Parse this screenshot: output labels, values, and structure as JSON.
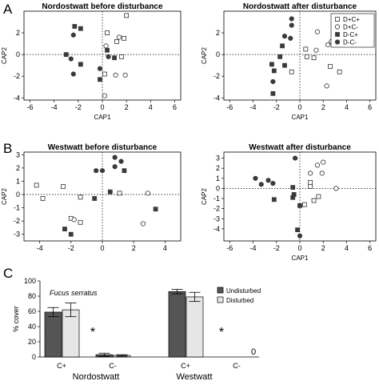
{
  "panel_labels": [
    "A",
    "B",
    "C"
  ],
  "colors": {
    "filled": "#3a3a3a",
    "open": "#ffffff",
    "bar_dark": "#555555",
    "bar_light": "#e6e6e6",
    "axis": "#000000"
  },
  "chart_data": [
    {
      "type": "scatter",
      "title": "Nordostwatt before disturbance",
      "xlabel": "CAP1",
      "ylabel": "CAP2",
      "xlim": [
        -6.5,
        6.5
      ],
      "ylim": [
        -4.2,
        4
      ],
      "xticks": [
        -6,
        -4,
        -2,
        0,
        2,
        4,
        6
      ],
      "yticks": [
        -4,
        -2,
        0,
        2
      ],
      "reference_lines": "dotted at x=0 and y=0",
      "series": [
        {
          "marker": "open-square",
          "points": [
            [
              2.0,
              3.6
            ],
            [
              0.4,
              2.0
            ],
            [
              1.8,
              1.5
            ],
            [
              1.2,
              1.2
            ],
            [
              1.6,
              -0.2
            ],
            [
              0.2,
              -1.8
            ]
          ]
        },
        {
          "marker": "open-circle",
          "points": [
            [
              1.4,
              1.6
            ],
            [
              0.3,
              0.8
            ],
            [
              1.1,
              -1.9
            ],
            [
              1.9,
              -1.9
            ],
            [
              0.2,
              -3.8
            ]
          ]
        },
        {
          "marker": "filled-square",
          "points": [
            [
              -2.3,
              2.6
            ],
            [
              -1.8,
              2.4
            ],
            [
              -3.0,
              0.0
            ],
            [
              -1.8,
              -0.9
            ],
            [
              0.4,
              0.4
            ],
            [
              1.0,
              -0.3
            ],
            [
              -0.2,
              -2.3
            ]
          ]
        },
        {
          "marker": "filled-circle",
          "points": [
            [
              -2.4,
              1.8
            ],
            [
              -2.6,
              -0.4
            ],
            [
              -2.4,
              -1.8
            ],
            [
              0.5,
              -0.2
            ],
            [
              -0.2,
              -1.3
            ]
          ]
        }
      ]
    },
    {
      "type": "scatter",
      "title": "Nordostwatt after disturbance",
      "xlabel": "CAP1",
      "ylabel": "CAP2",
      "xlim": [
        -6.5,
        6.5
      ],
      "ylim": [
        -4.2,
        4
      ],
      "xticks": [
        -6,
        -4,
        -2,
        0,
        2,
        4,
        6
      ],
      "yticks": [
        -4,
        -2,
        0,
        2
      ],
      "reference_lines": "dotted at x=0 and y=0",
      "legend": {
        "placement": "top-right",
        "entries": [
          {
            "label": "D+C+",
            "marker": "open-square"
          },
          {
            "label": "D+C-",
            "marker": "open-circle"
          },
          {
            "label": "D-C+",
            "marker": "filled-square"
          },
          {
            "label": "D-C-",
            "marker": "filled-circle"
          }
        ]
      },
      "series": [
        {
          "name": "D+C+",
          "marker": "open-square",
          "points": [
            [
              0.5,
              0.5
            ],
            [
              0.6,
              -0.2
            ],
            [
              1.2,
              -0.3
            ],
            [
              -0.7,
              -1.6
            ],
            [
              3.4,
              -1.6
            ],
            [
              2.6,
              -1.1
            ]
          ]
        },
        {
          "name": "D+C-",
          "marker": "open-circle",
          "points": [
            [
              1.5,
              2.1
            ],
            [
              2.4,
              0.9
            ],
            [
              2.7,
              1.2
            ],
            [
              1.4,
              0.4
            ],
            [
              2.3,
              -2.9
            ]
          ]
        },
        {
          "name": "D-C+",
          "marker": "filled-square",
          "points": [
            [
              -1.5,
              0.8
            ],
            [
              -1.7,
              -0.2
            ],
            [
              -2.4,
              -0.9
            ],
            [
              -2.2,
              -1.5
            ],
            [
              -1.3,
              -1.0
            ],
            [
              -2.3,
              -3.6
            ]
          ]
        },
        {
          "name": "D-C-",
          "marker": "filled-circle",
          "points": [
            [
              -0.7,
              3.3
            ],
            [
              -0.7,
              2.7
            ],
            [
              -1.3,
              1.7
            ],
            [
              -0.8,
              1.5
            ],
            [
              -2.3,
              -2.5
            ]
          ]
        }
      ]
    },
    {
      "type": "scatter",
      "title": "Westwatt before disturbance",
      "xlabel": "",
      "ylabel": "CAP2",
      "xlim": [
        -5,
        5
      ],
      "ylim": [
        -3.5,
        3.2
      ],
      "xticks": [
        -4,
        -2,
        0,
        2,
        4
      ],
      "yticks": [
        -3,
        -2,
        -1,
        0,
        1,
        2,
        3
      ],
      "reference_lines": "dotted at x=0 and y=0",
      "series": [
        {
          "marker": "open-square",
          "points": [
            [
              -4.2,
              0.7
            ],
            [
              -2.5,
              0.6
            ],
            [
              -3.8,
              -0.3
            ],
            [
              -1.4,
              -0.2
            ],
            [
              1.1,
              0.1
            ],
            [
              -2.0,
              -1.8
            ],
            [
              -1.4,
              -2.1
            ]
          ]
        },
        {
          "marker": "open-circle",
          "points": [
            [
              -1.8,
              -1.9
            ],
            [
              2.9,
              0.1
            ],
            [
              2.6,
              -2.2
            ]
          ]
        },
        {
          "marker": "filled-square",
          "points": [
            [
              -2.4,
              -2.6
            ],
            [
              -2.0,
              -3.0
            ],
            [
              -0.5,
              -0.3
            ],
            [
              1.4,
              1.8
            ],
            [
              3.4,
              -1.1
            ],
            [
              0.5,
              0.2
            ]
          ]
        },
        {
          "marker": "filled-circle",
          "points": [
            [
              -0.4,
              1.8
            ],
            [
              0.0,
              1.8
            ],
            [
              0.8,
              2.8
            ],
            [
              1.2,
              2.5
            ],
            [
              0.8,
              2.1
            ]
          ]
        }
      ]
    },
    {
      "type": "scatter",
      "title": "Westwatt after disturbance",
      "xlabel": "CAP1",
      "ylabel": "CAP2",
      "xlim": [
        -6.5,
        6.5
      ],
      "ylim": [
        -5.2,
        3.6
      ],
      "xticks": [
        -6,
        -4,
        -2,
        0,
        2,
        4,
        6
      ],
      "yticks": [
        -4,
        -3,
        -2,
        -1,
        0,
        1,
        2,
        3
      ],
      "reference_lines": "dotted at x=0 and y=0",
      "series": [
        {
          "marker": "open-square",
          "points": [
            [
              0.9,
              0.6
            ],
            [
              0.9,
              0.2
            ],
            [
              1.6,
              -0.8
            ],
            [
              0.4,
              -1.6
            ],
            [
              1.2,
              -1.2
            ]
          ]
        },
        {
          "marker": "open-circle",
          "points": [
            [
              0.9,
              1.5
            ],
            [
              1.5,
              2.3
            ],
            [
              2.0,
              2.6
            ],
            [
              1.9,
              1.5
            ],
            [
              3.1,
              0.0
            ]
          ]
        },
        {
          "marker": "filled-square",
          "points": [
            [
              -0.6,
              0.1
            ],
            [
              -0.5,
              -0.6
            ],
            [
              0.0,
              -1.7
            ],
            [
              -0.2,
              -4.1
            ],
            [
              -2.2,
              -1.1
            ],
            [
              -0.6,
              -0.9
            ]
          ]
        },
        {
          "marker": "filled-circle",
          "points": [
            [
              -0.4,
              3.0
            ],
            [
              -2.7,
              0.8
            ],
            [
              -3.8,
              1.0
            ],
            [
              -2.3,
              0.5
            ],
            [
              -3.3,
              0.4
            ],
            [
              0.0,
              -4.7
            ]
          ]
        }
      ]
    },
    {
      "type": "bar",
      "ylabel": "% cover",
      "ylim": [
        0,
        100
      ],
      "yticks": [
        0,
        20,
        40,
        60,
        80,
        100
      ],
      "annotation_species": "Fucus serratus",
      "groups": [
        {
          "name": "Nordostwatt",
          "categories": [
            "C+",
            "C-"
          ],
          "undisturbed": [
            59,
            3
          ],
          "disturbed": [
            62,
            2
          ],
          "undisturbed_err": [
            6,
            2
          ],
          "disturbed_err": [
            9,
            1
          ],
          "marks": [
            {
              "category": "C-",
              "text": "*"
            }
          ]
        },
        {
          "name": "Westwatt",
          "categories": [
            "C+",
            "C-"
          ],
          "undisturbed": [
            86,
            null
          ],
          "disturbed": [
            79,
            null
          ],
          "undisturbed_err": [
            3,
            null
          ],
          "disturbed_err": [
            6,
            null
          ],
          "marks": [
            {
              "category": "C-",
              "text": "*"
            },
            {
              "category": "C-",
              "text": "0"
            }
          ]
        }
      ],
      "series": [
        {
          "name": "Undisturbed",
          "color": "#555555"
        },
        {
          "name": "Disturbed",
          "color": "#e6e6e6"
        }
      ],
      "legend": {
        "placement": "top-right"
      }
    }
  ]
}
